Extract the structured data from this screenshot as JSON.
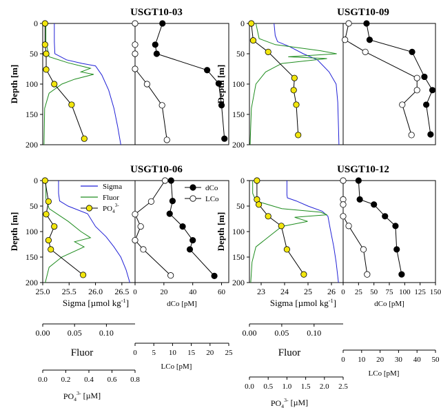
{
  "chart_data": {
    "type": "line",
    "colors": {
      "sigma": "#1f1fd6",
      "fluor": "#1e8c1e",
      "po4_fill": "#f2e60e",
      "dco_fill": "#000000",
      "lco_fill": "#ffffff"
    },
    "shared_axes": {
      "depth_label": "Depth [m]",
      "depth_range": [
        0,
        200
      ],
      "depth_ticks": [
        "0",
        "50",
        "100",
        "150",
        "200"
      ],
      "left_bottom_axes": {
        "sigma_label": "Sigma [µmol kg",
        "sigma_label_sup": "-1",
        "sigma_label_end": "]",
        "sigma_range": [
          25.0,
          26.75
        ],
        "sigma_ticks": [
          "25.0",
          "25.5",
          "26.0",
          "26.5"
        ],
        "dco_label": "dCo [pM]",
        "dco_range": [
          0,
          65
        ],
        "dco_ticks": [
          "0",
          "20",
          "40",
          "60"
        ],
        "fluor_label": "Fluor",
        "fluor_range": [
          0,
          0.145
        ],
        "fluor_ticks": [
          "0.00",
          "0.05",
          "0.10"
        ],
        "po4_label": "PO",
        "po4_label_sub": "4",
        "po4_label_sup": "3-",
        "po4_label_end": " [µM]",
        "po4_range": [
          0,
          0.8
        ],
        "po4_ticks": [
          "0.0",
          "0.2",
          "0.4",
          "0.6",
          "0.8"
        ],
        "lco_label": "LCo [pM]",
        "lco_range": [
          0,
          25
        ],
        "lco_ticks": [
          "0",
          "5",
          "10",
          "15",
          "20",
          "25"
        ]
      },
      "right_bottom_axes": {
        "sigma_label": "Sigma [µmol kg",
        "sigma_label_sup": "-1",
        "sigma_label_end": "]",
        "sigma_range": [
          22.5,
          26.5
        ],
        "sigma_ticks": [
          "23",
          "24",
          "25",
          "26"
        ],
        "dco_label": "dCo [pM]",
        "dco_range": [
          0,
          150
        ],
        "dco_ticks": [
          "0",
          "25",
          "50",
          "75",
          "100",
          "125",
          "150"
        ],
        "fluor_label": "Fluor",
        "fluor_range": [
          0,
          0.145
        ],
        "fluor_ticks": [
          "0.00",
          "0.05",
          "0.10"
        ],
        "po4_label": "PO",
        "po4_label_sub": "4",
        "po4_label_sup": "3-",
        "po4_label_end": " [µM]",
        "po4_range": [
          0,
          2.5
        ],
        "po4_ticks": [
          "0.0",
          "0.5",
          "1.0",
          "1.5",
          "2.0",
          "2.5"
        ],
        "lco_label": "LCo [pM]",
        "lco_range": [
          0,
          50
        ],
        "lco_ticks": [
          "0",
          "10",
          "20",
          "30",
          "40",
          "50"
        ]
      }
    },
    "legend": {
      "sigma": "Sigma",
      "fluor": "Fluor",
      "po4": "PO",
      "po4_sup": "3-",
      "po4_sub": "4",
      "dco": "dCo",
      "lco": "LCo"
    },
    "panels": [
      {
        "title": "USGT10-03",
        "position": "top-left",
        "sigma": [
          [
            25.22,
            0
          ],
          [
            25.22,
            30
          ],
          [
            25.23,
            50
          ],
          [
            25.45,
            60
          ],
          [
            25.75,
            66
          ],
          [
            26.0,
            70
          ],
          [
            26.12,
            85
          ],
          [
            26.25,
            110
          ],
          [
            26.35,
            140
          ],
          [
            26.42,
            170
          ],
          [
            26.48,
            200
          ]
        ],
        "fluor": [
          [
            0.005,
            0
          ],
          [
            0.005,
            30
          ],
          [
            0.01,
            55
          ],
          [
            0.04,
            65
          ],
          [
            0.075,
            74
          ],
          [
            0.06,
            80
          ],
          [
            0.08,
            84
          ],
          [
            0.05,
            92
          ],
          [
            0.03,
            100
          ],
          [
            0.01,
            115
          ],
          [
            0.003,
            140
          ],
          [
            0.002,
            200
          ]
        ],
        "po4": [
          [
            0.02,
            0
          ],
          [
            0.02,
            35
          ],
          [
            0.03,
            50
          ],
          [
            0.03,
            76
          ],
          [
            0.1,
            100
          ],
          [
            0.25,
            134
          ],
          [
            0.36,
            190
          ]
        ],
        "dco": [
          [
            19,
            0
          ],
          [
            14,
            35
          ],
          [
            15,
            50
          ],
          [
            50,
            77
          ],
          [
            58,
            99
          ],
          [
            60,
            135
          ],
          [
            62,
            190
          ]
        ],
        "lco": [
          [
            0,
            0
          ],
          [
            0,
            35
          ],
          [
            0,
            50
          ],
          [
            0,
            75
          ],
          [
            3.2,
            100
          ],
          [
            7.2,
            135
          ],
          [
            8.5,
            192
          ]
        ]
      },
      {
        "title": "USGT10-09",
        "position": "top-right",
        "sigma": [
          [
            23.55,
            0
          ],
          [
            23.6,
            20
          ],
          [
            23.7,
            30
          ],
          [
            24.2,
            38
          ],
          [
            24.8,
            50
          ],
          [
            25.4,
            60
          ],
          [
            25.9,
            80
          ],
          [
            26.2,
            100
          ],
          [
            26.27,
            130
          ],
          [
            26.3,
            170
          ],
          [
            26.32,
            200
          ]
        ],
        "fluor": [
          [
            0.01,
            0
          ],
          [
            0.015,
            25
          ],
          [
            0.04,
            35
          ],
          [
            0.11,
            45
          ],
          [
            0.135,
            50
          ],
          [
            0.06,
            55
          ],
          [
            0.12,
            58
          ],
          [
            0.05,
            66
          ],
          [
            0.025,
            80
          ],
          [
            0.01,
            100
          ],
          [
            0.003,
            140
          ],
          [
            0.001,
            200
          ]
        ],
        "po4": [
          [
            0.05,
            0
          ],
          [
            0.1,
            28
          ],
          [
            0.5,
            47
          ],
          [
            1.2,
            90
          ],
          [
            1.18,
            110
          ],
          [
            1.25,
            134
          ],
          [
            1.3,
            184
          ]
        ],
        "dco": [
          [
            38,
            0
          ],
          [
            43,
            27
          ],
          [
            112,
            47
          ],
          [
            132,
            88
          ],
          [
            145,
            110
          ],
          [
            135,
            134
          ],
          [
            142,
            183
          ]
        ],
        "lco": [
          [
            3,
            0
          ],
          [
            1,
            27
          ],
          [
            12,
            47
          ],
          [
            40,
            90
          ],
          [
            40,
            110
          ],
          [
            32,
            134
          ],
          [
            37,
            184
          ]
        ]
      },
      {
        "title": "USGT10-06",
        "position": "bottom-left",
        "sigma": [
          [
            25.3,
            0
          ],
          [
            25.3,
            25
          ],
          [
            25.32,
            40
          ],
          [
            25.48,
            50
          ],
          [
            25.85,
            65
          ],
          [
            26.0,
            90
          ],
          [
            26.2,
            110
          ],
          [
            26.35,
            130
          ],
          [
            26.48,
            150
          ],
          [
            26.58,
            175
          ],
          [
            26.65,
            200
          ]
        ],
        "fluor": [
          [
            0.005,
            0
          ],
          [
            0.005,
            35
          ],
          [
            0.01,
            55
          ],
          [
            0.04,
            80
          ],
          [
            0.06,
            100
          ],
          [
            0.075,
            112
          ],
          [
            0.05,
            120
          ],
          [
            0.065,
            130
          ],
          [
            0.03,
            150
          ],
          [
            0.01,
            170
          ],
          [
            0.004,
            200
          ]
        ],
        "po4": [
          [
            0.02,
            0
          ],
          [
            0.05,
            41
          ],
          [
            0.03,
            66
          ],
          [
            0.1,
            90
          ],
          [
            0.05,
            117
          ],
          [
            0.07,
            135
          ],
          [
            0.35,
            185
          ]
        ],
        "dco": [
          [
            25,
            0
          ],
          [
            26,
            40
          ],
          [
            24,
            65
          ],
          [
            33,
            90
          ],
          [
            40,
            117
          ],
          [
            38,
            135
          ],
          [
            55,
            187
          ]
        ],
        "lco": [
          [
            8,
            0
          ],
          [
            4.3,
            41
          ],
          [
            0,
            66
          ],
          [
            1.5,
            90
          ],
          [
            0,
            117
          ],
          [
            2.2,
            135
          ],
          [
            9.5,
            186
          ]
        ]
      },
      {
        "title": "USGT10-12",
        "position": "bottom-right",
        "sigma": [
          [
            24.1,
            0
          ],
          [
            24.1,
            28
          ],
          [
            24.12,
            34
          ],
          [
            24.5,
            40
          ],
          [
            25.0,
            50
          ],
          [
            25.6,
            60
          ],
          [
            25.85,
            70
          ],
          [
            25.95,
            95
          ],
          [
            26.1,
            130
          ],
          [
            26.2,
            160
          ],
          [
            26.3,
            200
          ]
        ],
        "fluor": [
          [
            0.005,
            0
          ],
          [
            0.005,
            25
          ],
          [
            0.01,
            40
          ],
          [
            0.05,
            55
          ],
          [
            0.11,
            62
          ],
          [
            0.12,
            67
          ],
          [
            0.07,
            72
          ],
          [
            0.09,
            80
          ],
          [
            0.05,
            90
          ],
          [
            0.03,
            110
          ],
          [
            0.01,
            130
          ],
          [
            0.004,
            160
          ],
          [
            0.002,
            200
          ]
        ],
        "po4": [
          [
            0.2,
            0
          ],
          [
            0.2,
            37
          ],
          [
            0.25,
            47
          ],
          [
            0.5,
            70
          ],
          [
            0.85,
            89
          ],
          [
            1.0,
            135
          ],
          [
            1.45,
            184
          ]
        ],
        "dco": [
          [
            25,
            0
          ],
          [
            27,
            37
          ],
          [
            50,
            47
          ],
          [
            68,
            70
          ],
          [
            85,
            89
          ],
          [
            87,
            135
          ],
          [
            95,
            184
          ]
        ],
        "lco": [
          [
            0,
            0
          ],
          [
            0,
            37
          ],
          [
            0,
            47
          ],
          [
            0,
            70
          ],
          [
            3,
            89
          ],
          [
            11,
            135
          ],
          [
            13,
            184
          ]
        ]
      }
    ]
  }
}
